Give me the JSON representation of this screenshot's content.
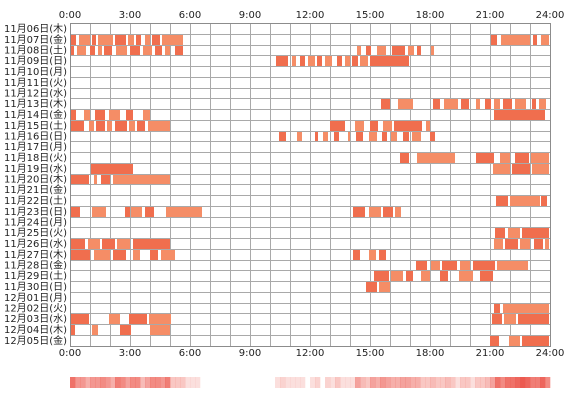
{
  "chart_data": {
    "type": "heatmap",
    "xlim": [
      0,
      24
    ],
    "grid": true,
    "grid_step_hours": 1,
    "x_tick_values": [
      0,
      3,
      6,
      9,
      12,
      15,
      18,
      21,
      24
    ],
    "x_ticks": [
      "0:00",
      "3:00",
      "6:00",
      "9:00",
      "12:00",
      "15:00",
      "18:00",
      "21:00",
      "24:00"
    ],
    "colors": {
      "bar": "#f06e4e",
      "bar_alt": "#f58d66",
      "grid": "#a9a9a9",
      "border": "#8c8c8c",
      "density": "#ec5a50"
    },
    "rows": [
      {
        "label": "11月06日(木)",
        "segments": []
      },
      {
        "label": "11月07日(金)",
        "segments": [
          [
            0,
            0.3
          ],
          [
            0.45,
            1.0
          ],
          [
            1.1,
            1.3
          ],
          [
            1.4,
            2.15
          ],
          [
            2.25,
            2.8
          ],
          [
            2.9,
            3.2
          ],
          [
            3.3,
            3.55
          ],
          [
            3.75,
            4.0
          ],
          [
            4.1,
            4.5
          ],
          [
            4.6,
            5.65
          ],
          [
            21.05,
            21.35
          ],
          [
            21.55,
            23.0
          ],
          [
            23.15,
            23.35
          ],
          [
            23.55,
            23.95
          ]
        ]
      },
      {
        "label": "11月08日(土)",
        "segments": [
          [
            0,
            0.2
          ],
          [
            0.35,
            0.8
          ],
          [
            1.0,
            1.25
          ],
          [
            1.4,
            1.6
          ],
          [
            1.7,
            2.1
          ],
          [
            2.3,
            2.85
          ],
          [
            3.0,
            3.5
          ],
          [
            3.65,
            4.1
          ],
          [
            4.25,
            4.6
          ],
          [
            4.75,
            5.0
          ],
          [
            5.25,
            5.65
          ],
          [
            14.35,
            14.55
          ],
          [
            14.8,
            15.05
          ],
          [
            15.35,
            15.8
          ],
          [
            16.1,
            16.75
          ],
          [
            16.9,
            17.2
          ],
          [
            17.35,
            17.55
          ],
          [
            18.05,
            18.2
          ]
        ]
      },
      {
        "label": "11月09日(日)",
        "segments": [
          [
            10.3,
            10.9
          ],
          [
            11.1,
            11.3
          ],
          [
            11.5,
            11.75
          ],
          [
            11.9,
            12.25
          ],
          [
            12.35,
            12.6
          ],
          [
            12.75,
            13.1
          ],
          [
            13.35,
            13.6
          ],
          [
            13.75,
            14.0
          ],
          [
            14.1,
            14.4
          ],
          [
            14.5,
            14.9
          ],
          [
            15.0,
            16.95
          ]
        ]
      },
      {
        "label": "11月10日(月)",
        "segments": []
      },
      {
        "label": "11月11日(火)",
        "segments": []
      },
      {
        "label": "11月12日(水)",
        "segments": []
      },
      {
        "label": "11月13日(木)",
        "segments": [
          [
            15.55,
            16.0
          ],
          [
            16.4,
            17.15
          ],
          [
            18.15,
            18.5
          ],
          [
            18.7,
            19.4
          ],
          [
            19.55,
            19.95
          ],
          [
            20.3,
            20.5
          ],
          [
            20.75,
            21.05
          ],
          [
            21.2,
            21.5
          ],
          [
            21.65,
            22.1
          ],
          [
            22.25,
            22.8
          ],
          [
            23.1,
            23.3
          ],
          [
            23.45,
            23.8
          ]
        ]
      },
      {
        "label": "11月14日(金)",
        "segments": [
          [
            0,
            0.3
          ],
          [
            0.7,
            1.0
          ],
          [
            1.25,
            1.75
          ],
          [
            1.95,
            2.5
          ],
          [
            2.8,
            3.15
          ],
          [
            3.65,
            4.0
          ],
          [
            21.2,
            23.75
          ]
        ]
      },
      {
        "label": "11月15日(土)",
        "segments": [
          [
            0,
            0.7
          ],
          [
            0.95,
            1.2
          ],
          [
            1.3,
            1.75
          ],
          [
            1.85,
            2.1
          ],
          [
            2.25,
            2.85
          ],
          [
            2.95,
            3.25
          ],
          [
            3.35,
            3.75
          ],
          [
            3.9,
            5.0
          ],
          [
            13.0,
            13.75
          ],
          [
            14.25,
            14.7
          ],
          [
            15.0,
            15.4
          ],
          [
            15.65,
            16.1
          ],
          [
            16.2,
            17.6
          ],
          [
            17.8,
            18.0
          ]
        ]
      },
      {
        "label": "11月16日(日)",
        "segments": [
          [
            10.45,
            10.8
          ],
          [
            11.35,
            11.6
          ],
          [
            12.25,
            12.4
          ],
          [
            12.65,
            12.9
          ],
          [
            13.2,
            13.45
          ],
          [
            13.9,
            14.0
          ],
          [
            14.3,
            14.65
          ],
          [
            14.95,
            15.35
          ],
          [
            15.6,
            15.85
          ],
          [
            16.05,
            16.35
          ],
          [
            16.65,
            16.95
          ],
          [
            17.1,
            17.55
          ],
          [
            18.0,
            18.25
          ]
        ]
      },
      {
        "label": "11月17日(月)",
        "segments": []
      },
      {
        "label": "11月18日(火)",
        "segments": [
          [
            16.5,
            16.95
          ],
          [
            17.35,
            19.25
          ],
          [
            20.3,
            21.2
          ],
          [
            21.5,
            22.0
          ],
          [
            22.25,
            22.95
          ],
          [
            23.05,
            23.95
          ]
        ]
      },
      {
        "label": "11月19日(水)",
        "segments": [
          [
            1.05,
            3.15
          ],
          [
            21.15,
            22.0
          ],
          [
            22.1,
            23.0
          ],
          [
            23.1,
            23.95
          ]
        ]
      },
      {
        "label": "11月20日(木)",
        "segments": [
          [
            0,
            0.95
          ],
          [
            1.2,
            1.35
          ],
          [
            1.55,
            2.0
          ],
          [
            2.15,
            5.0
          ]
        ]
      },
      {
        "label": "11月21日(金)",
        "segments": []
      },
      {
        "label": "11月22日(土)",
        "segments": [
          [
            21.3,
            21.9
          ],
          [
            22.0,
            23.5
          ],
          [
            23.55,
            23.85
          ]
        ]
      },
      {
        "label": "11月23日(日)",
        "segments": [
          [
            0,
            0.5
          ],
          [
            1.1,
            1.8
          ],
          [
            2.75,
            3.0
          ],
          [
            3.05,
            3.6
          ],
          [
            3.75,
            4.2
          ],
          [
            4.8,
            6.6
          ],
          [
            14.15,
            14.75
          ],
          [
            14.95,
            15.55
          ],
          [
            15.65,
            16.15
          ],
          [
            16.25,
            16.55
          ]
        ]
      },
      {
        "label": "11月24日(月)",
        "segments": []
      },
      {
        "label": "11月25日(火)",
        "segments": [
          [
            21.25,
            21.75
          ],
          [
            21.9,
            22.5
          ],
          [
            22.6,
            23.95
          ]
        ]
      },
      {
        "label": "11月26日(水)",
        "segments": [
          [
            0,
            0.75
          ],
          [
            0.9,
            1.5
          ],
          [
            1.6,
            2.25
          ],
          [
            2.35,
            3.0
          ],
          [
            3.15,
            5.0
          ],
          [
            21.2,
            21.65
          ],
          [
            21.75,
            22.4
          ],
          [
            22.5,
            23.0
          ],
          [
            23.2,
            23.65
          ],
          [
            23.75,
            23.95
          ]
        ]
      },
      {
        "label": "11月27日(木)",
        "segments": [
          [
            0,
            1.0
          ],
          [
            1.2,
            2.0
          ],
          [
            2.15,
            2.8
          ],
          [
            3.15,
            3.5
          ],
          [
            4.0,
            4.4
          ],
          [
            4.55,
            5.25
          ],
          [
            14.15,
            14.5
          ],
          [
            14.95,
            15.3
          ],
          [
            15.45,
            15.8
          ]
        ]
      },
      {
        "label": "11月28日(金)",
        "segments": [
          [
            17.3,
            17.85
          ],
          [
            18.05,
            18.5
          ],
          [
            18.6,
            19.35
          ],
          [
            19.5,
            20.0
          ],
          [
            20.15,
            21.25
          ],
          [
            21.35,
            22.9
          ]
        ]
      },
      {
        "label": "11月29日(土)",
        "segments": [
          [
            15.2,
            15.95
          ],
          [
            16.05,
            16.65
          ],
          [
            16.8,
            17.15
          ],
          [
            17.55,
            18.0
          ],
          [
            18.5,
            18.9
          ],
          [
            19.45,
            20.15
          ],
          [
            20.5,
            21.15
          ]
        ]
      },
      {
        "label": "11月30日(日)",
        "segments": [
          [
            14.8,
            15.35
          ],
          [
            15.45,
            16.0
          ]
        ]
      },
      {
        "label": "12月01日(月)",
        "segments": []
      },
      {
        "label": "12月02日(火)",
        "segments": [
          [
            21.2,
            21.5
          ],
          [
            21.65,
            23.95
          ]
        ]
      },
      {
        "label": "12月03日(水)",
        "segments": [
          [
            0,
            0.95
          ],
          [
            1.95,
            2.5
          ],
          [
            2.95,
            3.85
          ],
          [
            3.95,
            5.05
          ],
          [
            21.1,
            21.6
          ],
          [
            21.7,
            22.3
          ],
          [
            22.4,
            23.95
          ]
        ]
      },
      {
        "label": "12月04日(木)",
        "segments": [
          [
            0,
            0.25
          ],
          [
            1.1,
            1.4
          ],
          [
            2.5,
            3.05
          ],
          [
            4.0,
            5.0
          ]
        ]
      },
      {
        "label": "12月05日(金)",
        "segments": [
          [
            21.0,
            21.45
          ],
          [
            21.95,
            22.5
          ],
          [
            22.6,
            23.95
          ]
        ]
      }
    ]
  }
}
